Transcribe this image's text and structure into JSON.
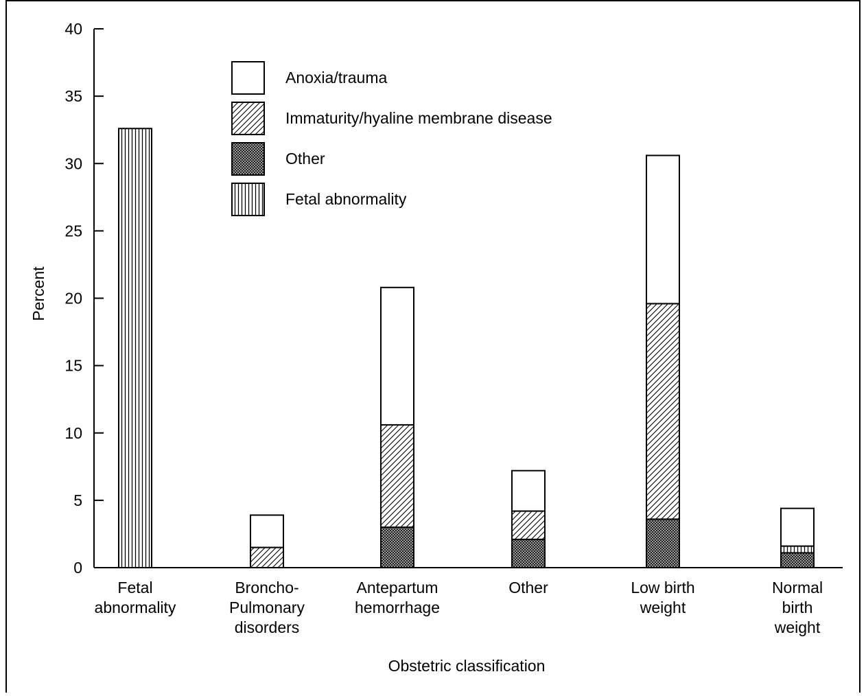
{
  "chart_data": {
    "type": "bar",
    "stacked": true,
    "title": "",
    "xlabel": "Obstetric classification",
    "ylabel": "Percent",
    "ylim": [
      0,
      40
    ],
    "yticks": [
      0,
      5,
      10,
      15,
      20,
      25,
      30,
      35,
      40
    ],
    "grid": false,
    "legend_position": "top-left",
    "categories": [
      [
        "Fetal",
        "abnormality"
      ],
      [
        "Broncho-",
        "Pulmonary",
        "disorders"
      ],
      [
        "Antepartum",
        "hemorrhage"
      ],
      [
        "Other"
      ],
      [
        "Low birth",
        "weight"
      ],
      [
        "Normal",
        "birth",
        "weight"
      ]
    ],
    "series": [
      {
        "name": "Other",
        "pattern": "crosshatch",
        "values": [
          0,
          0,
          3.0,
          2.1,
          3.6,
          1.1
        ]
      },
      {
        "name": "Fetal abnormality",
        "pattern": "vertical",
        "values": [
          32.6,
          0,
          0,
          0,
          0,
          0.5
        ]
      },
      {
        "name": "Immaturity/hyaline membrane disease",
        "pattern": "diagonal",
        "values": [
          0,
          1.5,
          7.6,
          2.1,
          16.0,
          0
        ]
      },
      {
        "name": "Anoxia/trauma",
        "pattern": "empty",
        "values": [
          0,
          2.4,
          10.2,
          3.0,
          11.0,
          2.8
        ]
      }
    ],
    "legend_order": [
      "Anoxia/trauma",
      "Immaturity/hyaline membrane disease",
      "Other",
      "Fetal abnormality"
    ]
  }
}
